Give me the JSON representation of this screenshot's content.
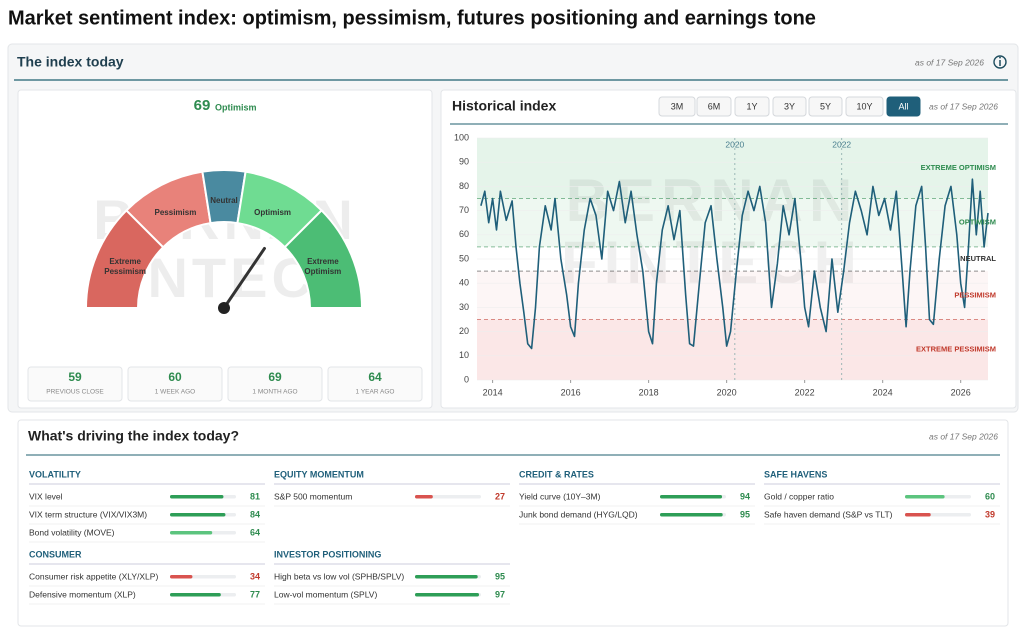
{
  "page_title": "Market sentiment index: optimism, pessimism, futures positioning and earnings tone",
  "panel": {
    "title": "The index today",
    "as_of": "as of 17 Sep 2026"
  },
  "watermark": [
    "BERNAN",
    "FINTECH"
  ],
  "gauge": {
    "value": 69,
    "label": "Optimism",
    "range": [
      0,
      100
    ],
    "segments": [
      {
        "name": "Extreme Pessimism",
        "from": 0,
        "to": 25,
        "color": "#d9675f"
      },
      {
        "name": "Pessimism",
        "from": 25,
        "to": 45,
        "color": "#e8827a"
      },
      {
        "name": "Neutral",
        "from": 45,
        "to": 55,
        "color": "#4a8aa0"
      },
      {
        "name": "Optimism",
        "from": 55,
        "to": 75,
        "color": "#6fdc92"
      },
      {
        "name": "Extreme Optimism",
        "from": 75,
        "to": 100,
        "color": "#4cbd75"
      }
    ],
    "stats": [
      {
        "value": 59,
        "label": "PREVIOUS CLOSE"
      },
      {
        "value": 60,
        "label": "1 WEEK AGO"
      },
      {
        "value": 69,
        "label": "1 MONTH AGO"
      },
      {
        "value": 64,
        "label": "1 YEAR AGO"
      }
    ]
  },
  "chart_data": {
    "type": "line",
    "title": "Historical index",
    "as_of": "as of 17 Sep 2026",
    "ranges": [
      "3M",
      "6M",
      "1Y",
      "3Y",
      "5Y",
      "10Y",
      "All"
    ],
    "selected": "All",
    "xlim": [
      2013.6,
      2026.7
    ],
    "xticks": [
      2014,
      2016,
      2018,
      2020,
      2022,
      2024,
      2026
    ],
    "ylim": [
      0,
      100
    ],
    "yticks": [
      0,
      10,
      20,
      30,
      40,
      50,
      60,
      70,
      80,
      90,
      100
    ],
    "bands": [
      {
        "name": "EXTREME PESSIMISM",
        "from": 0,
        "to": 25,
        "fill": "#fbe7e7",
        "color": "#c0392b"
      },
      {
        "name": "PESSIMISM",
        "from": 25,
        "to": 45,
        "fill": "#fdf6f6",
        "color": "#c0392b"
      },
      {
        "name": "NEUTRAL",
        "from": 45,
        "to": 55,
        "fill": "#ffffff",
        "color": "#333333"
      },
      {
        "name": "OPTIMISM",
        "from": 55,
        "to": 75,
        "fill": "#eef8f1",
        "color": "#2e8b4f"
      },
      {
        "name": "EXTREME OPTIMISM",
        "from": 75,
        "to": 100,
        "fill": "#e5f4ea",
        "color": "#2e8b4f"
      }
    ],
    "markers": [
      {
        "x": 2020.21,
        "label": "2020"
      },
      {
        "x": 2022.95,
        "label": "2022"
      }
    ],
    "x": [
      2013.7,
      2013.8,
      2013.9,
      2014.0,
      2014.1,
      2014.2,
      2014.35,
      2014.5,
      2014.6,
      2014.7,
      2014.8,
      2014.9,
      2015.0,
      2015.1,
      2015.2,
      2015.35,
      2015.5,
      2015.6,
      2015.75,
      2015.9,
      2016.0,
      2016.1,
      2016.2,
      2016.35,
      2016.5,
      2016.65,
      2016.8,
      2016.95,
      2017.1,
      2017.25,
      2017.4,
      2017.55,
      2017.7,
      2017.85,
      2018.0,
      2018.1,
      2018.2,
      2018.35,
      2018.5,
      2018.65,
      2018.8,
      2018.95,
      2019.05,
      2019.15,
      2019.3,
      2019.45,
      2019.6,
      2019.75,
      2019.9,
      2020.0,
      2020.1,
      2020.25,
      2020.4,
      2020.55,
      2020.7,
      2020.85,
      2021.0,
      2021.15,
      2021.3,
      2021.45,
      2021.6,
      2021.75,
      2021.9,
      2022.0,
      2022.1,
      2022.25,
      2022.4,
      2022.55,
      2022.7,
      2022.85,
      2023.0,
      2023.15,
      2023.3,
      2023.45,
      2023.6,
      2023.75,
      2023.9,
      2024.05,
      2024.2,
      2024.35,
      2024.5,
      2024.6,
      2024.7,
      2024.85,
      2025.0,
      2025.1,
      2025.2,
      2025.3,
      2025.45,
      2025.6,
      2025.75,
      2025.9,
      2026.0,
      2026.1,
      2026.2,
      2026.3,
      2026.4,
      2026.5,
      2026.6,
      2026.7
    ],
    "series": [
      {
        "color": "#1f5f7a",
        "values": [
          72,
          78,
          65,
          75,
          62,
          78,
          66,
          74,
          55,
          40,
          28,
          15,
          13,
          30,
          55,
          72,
          62,
          75,
          50,
          35,
          22,
          18,
          40,
          62,
          75,
          68,
          50,
          78,
          70,
          82,
          65,
          78,
          60,
          45,
          20,
          15,
          40,
          62,
          72,
          58,
          70,
          35,
          15,
          14,
          40,
          65,
          72,
          50,
          30,
          14,
          20,
          45,
          68,
          78,
          70,
          80,
          65,
          30,
          48,
          72,
          60,
          75,
          50,
          30,
          22,
          45,
          30,
          20,
          50,
          28,
          45,
          65,
          78,
          70,
          60,
          80,
          68,
          75,
          62,
          78,
          45,
          22,
          45,
          72,
          80,
          55,
          25,
          23,
          50,
          72,
          80,
          60,
          40,
          30,
          55,
          83,
          60,
          78,
          55,
          69
        ]
      }
    ]
  },
  "drivers": {
    "title": "What's driving the index today?",
    "as_of": "as of 17 Sep 2026",
    "groups": [
      {
        "name": "VOLATILITY",
        "items": [
          {
            "name": "VIX level",
            "value": 81,
            "color": "#2e9e57"
          },
          {
            "name": "VIX term structure (VIX/VIX3M)",
            "value": 84,
            "color": "#2e9e57"
          },
          {
            "name": "Bond volatility (MOVE)",
            "value": 64,
            "color": "#5cc47e"
          }
        ]
      },
      {
        "name": "EQUITY MOMENTUM",
        "items": [
          {
            "name": "S&P 500 momentum",
            "value": 27,
            "color": "#d9534f"
          }
        ]
      },
      {
        "name": "CREDIT & RATES",
        "items": [
          {
            "name": "Yield curve (10Y–3M)",
            "value": 94,
            "color": "#2e9e57"
          },
          {
            "name": "Junk bond demand (HYG/LQD)",
            "value": 95,
            "color": "#2e9e57"
          }
        ]
      },
      {
        "name": "SAFE HAVENS",
        "items": [
          {
            "name": "Gold / copper ratio",
            "value": 60,
            "color": "#5cc47e"
          },
          {
            "name": "Safe haven demand (S&P vs TLT)",
            "value": 39,
            "color": "#d9534f"
          }
        ]
      },
      {
        "name": "CONSUMER",
        "items": [
          {
            "name": "Consumer risk appetite (XLY/XLP)",
            "value": 34,
            "color": "#d9534f"
          },
          {
            "name": "Defensive momentum (XLP)",
            "value": 77,
            "color": "#2e9e57"
          }
        ]
      },
      {
        "name": "INVESTOR POSITIONING",
        "items": [
          {
            "name": "High beta vs low vol (SPHB/SPLV)",
            "value": 95,
            "color": "#2e9e57"
          },
          {
            "name": "Low-vol momentum (SPLV)",
            "value": 97,
            "color": "#2e9e57"
          }
        ]
      }
    ]
  }
}
